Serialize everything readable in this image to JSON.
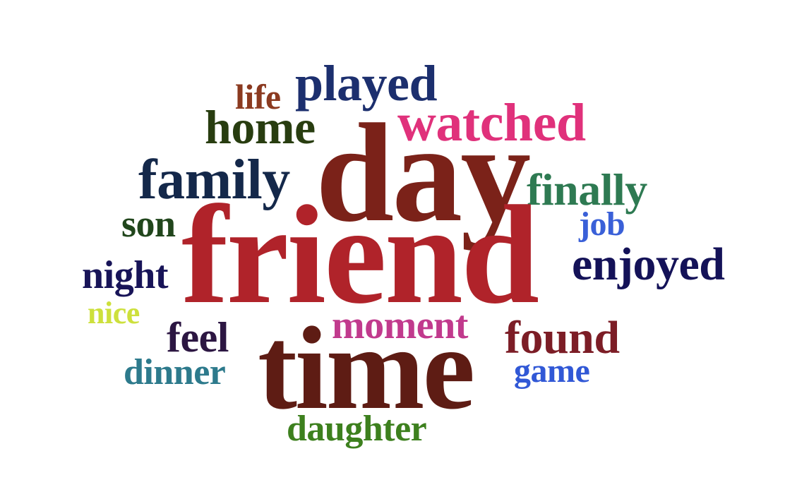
{
  "words": [
    {
      "key": "life",
      "text": "life",
      "color": "#8b3a20"
    },
    {
      "key": "played",
      "text": "played",
      "color": "#1c2f6e"
    },
    {
      "key": "watched",
      "text": "watched",
      "color": "#e0317b"
    },
    {
      "key": "home",
      "text": "home",
      "color": "#283d10"
    },
    {
      "key": "day",
      "text": "day",
      "color": "#7b2219"
    },
    {
      "key": "family",
      "text": "family",
      "color": "#14284a"
    },
    {
      "key": "finally",
      "text": "finally",
      "color": "#2e7a52"
    },
    {
      "key": "son",
      "text": "son",
      "color": "#21461c"
    },
    {
      "key": "job",
      "text": "job",
      "color": "#3a60d8"
    },
    {
      "key": "friend",
      "text": "friend",
      "color": "#b0232a"
    },
    {
      "key": "night",
      "text": "night",
      "color": "#181458"
    },
    {
      "key": "enjoyed",
      "text": "enjoyed",
      "color": "#141258"
    },
    {
      "key": "nice",
      "text": "nice",
      "color": "#cde03c"
    },
    {
      "key": "moment",
      "text": "moment",
      "color": "#c13a8d"
    },
    {
      "key": "feel",
      "text": "feel",
      "color": "#2c1642"
    },
    {
      "key": "found",
      "text": "found",
      "color": "#7c1d26"
    },
    {
      "key": "time",
      "text": "time",
      "color": "#5e1c14"
    },
    {
      "key": "dinner",
      "text": "dinner",
      "color": "#2d7a8c"
    },
    {
      "key": "game",
      "text": "game",
      "color": "#3158d6"
    },
    {
      "key": "daughter",
      "text": "daughter",
      "color": "#3d801e"
    }
  ]
}
